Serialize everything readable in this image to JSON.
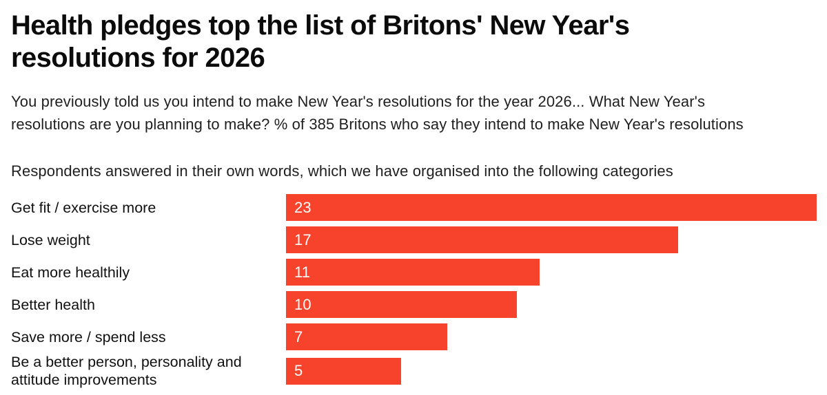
{
  "header": {
    "title": "Health pledges top the list of Britons' New Year's\nresolutions for 2026",
    "subtitle": "You previously told us you intend to make New Year's resolutions for the year 2026... What New Year's\nresolutions are you planning to make? % of 385 Britons who say they intend to make New Year's resolutions",
    "note": "Respondents answered in their own words, which we have organised into the following categories"
  },
  "chart_data": {
    "type": "bar",
    "orientation": "horizontal",
    "title": "Health pledges top the list of Britons' New Year's resolutions for 2026",
    "subtitle": "You previously told us you intend to make New Year's resolutions for the year 2026... What New Year's resolutions are you planning to make? % of 385 Britons who say they intend to make New Year's resolutions",
    "annotation": "Respondents answered in their own words, which we have organised into the following categories",
    "categories": [
      "Get fit / exercise more",
      "Lose weight",
      "Eat more healthily",
      "Better health",
      "Save more / spend less",
      "Be a better person, personality and attitude improvements"
    ],
    "values": [
      23,
      17,
      11,
      10,
      7,
      5
    ],
    "unit": "%",
    "sample_size": 385,
    "xlim": [
      0,
      23
    ],
    "grid": false,
    "legend": false,
    "value_label_position": "inside-left",
    "bar_color": "#F8432C",
    "value_label_color": "#FFFFFF"
  },
  "colors": {
    "background": "#FFFFFF",
    "title_text": "#0B0B0B",
    "body_text": "#1F1F1F",
    "bar": "#F8432C"
  }
}
